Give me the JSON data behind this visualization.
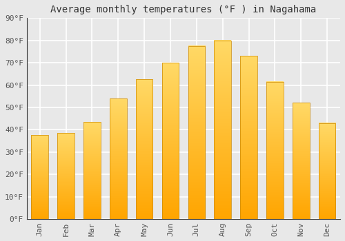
{
  "months": [
    "Jan",
    "Feb",
    "Mar",
    "Apr",
    "May",
    "Jun",
    "Jul",
    "Aug",
    "Sep",
    "Oct",
    "Nov",
    "Dec"
  ],
  "values": [
    37.5,
    38.5,
    43.5,
    54.0,
    62.5,
    70.0,
    77.5,
    80.0,
    73.0,
    61.5,
    52.0,
    43.0
  ],
  "bar_color_bottom": "#FFA500",
  "bar_color_top": "#FFD966",
  "bar_edge_color": "#CC8800",
  "title": "Average monthly temperatures (°F ) in Nagahama",
  "ylim": [
    0,
    90
  ],
  "yticks": [
    0,
    10,
    20,
    30,
    40,
    50,
    60,
    70,
    80,
    90
  ],
  "ytick_labels": [
    "0°F",
    "10°F",
    "20°F",
    "30°F",
    "40°F",
    "50°F",
    "60°F",
    "70°F",
    "80°F",
    "90°F"
  ],
  "background_color": "#e8e8e8",
  "grid_color": "#ffffff",
  "title_fontsize": 10,
  "tick_fontsize": 8,
  "bar_width": 0.65
}
